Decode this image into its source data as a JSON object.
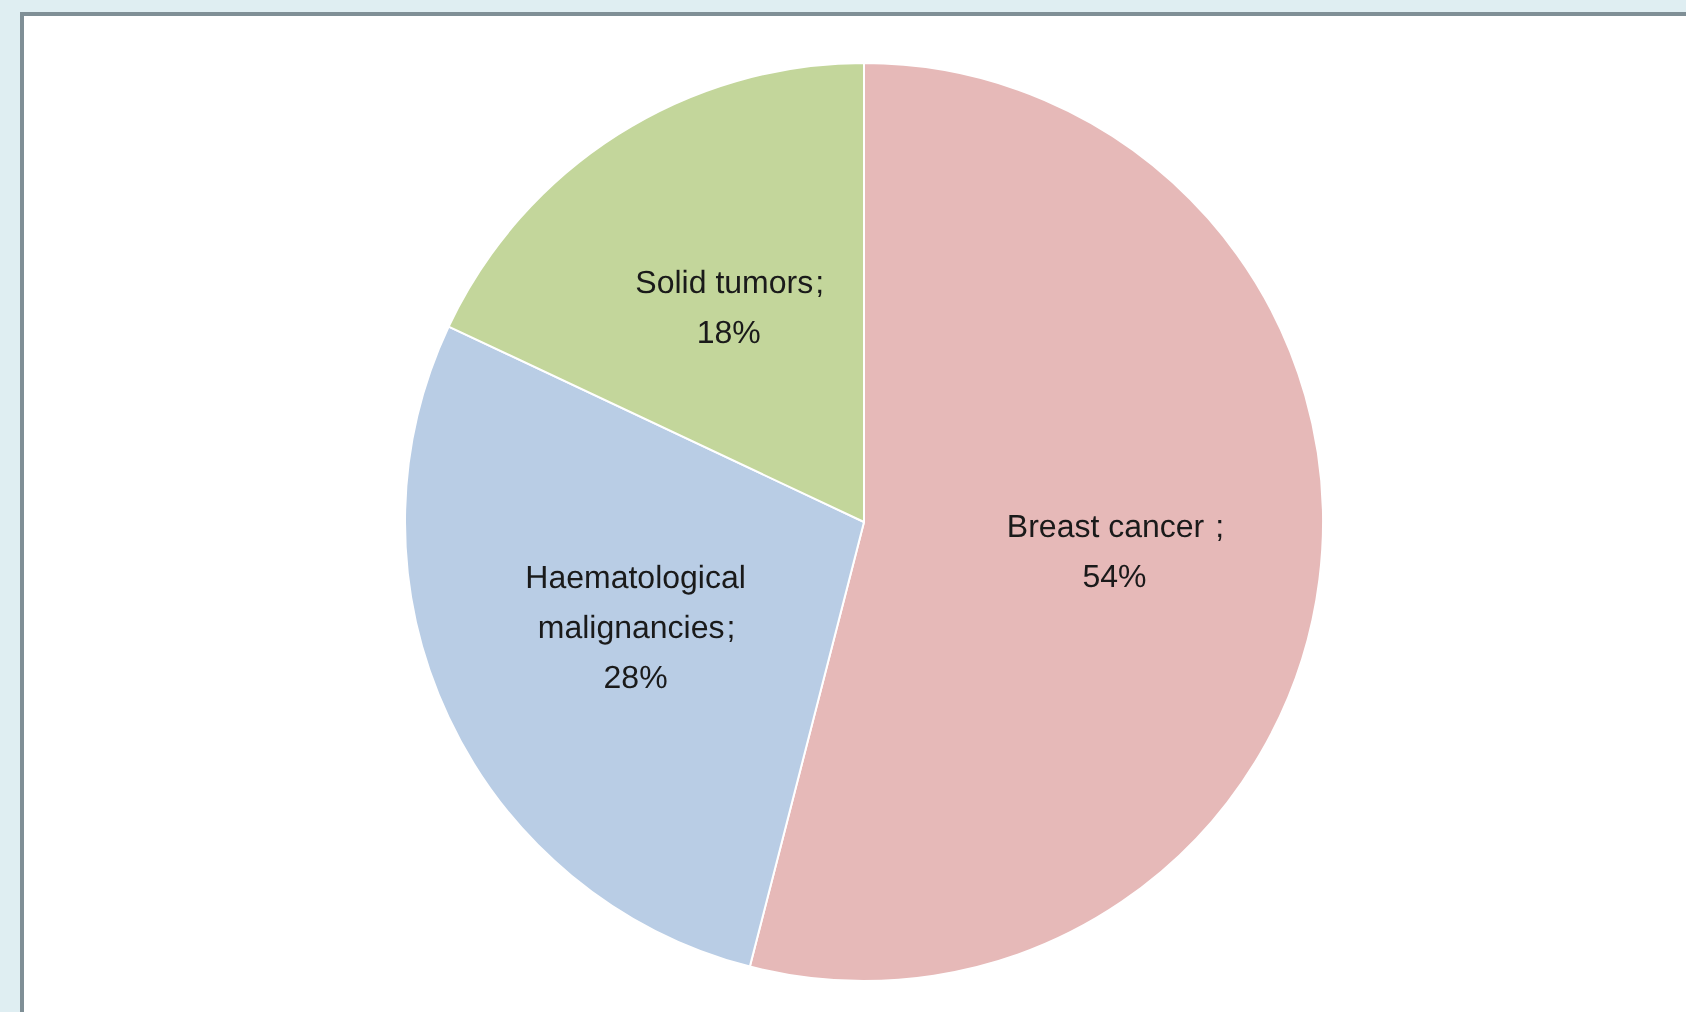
{
  "chart_data": {
    "type": "pie",
    "categories": [
      "Breast cancer",
      "Haematological malignancies",
      "Solid tumors"
    ],
    "values": [
      54,
      28,
      18
    ],
    "colors": [
      "#e6b9b8",
      "#b9cde5",
      "#c3d69b"
    ],
    "value_labels": [
      " ;\n54%",
      ";\n28%",
      ";\n18%"
    ]
  }
}
